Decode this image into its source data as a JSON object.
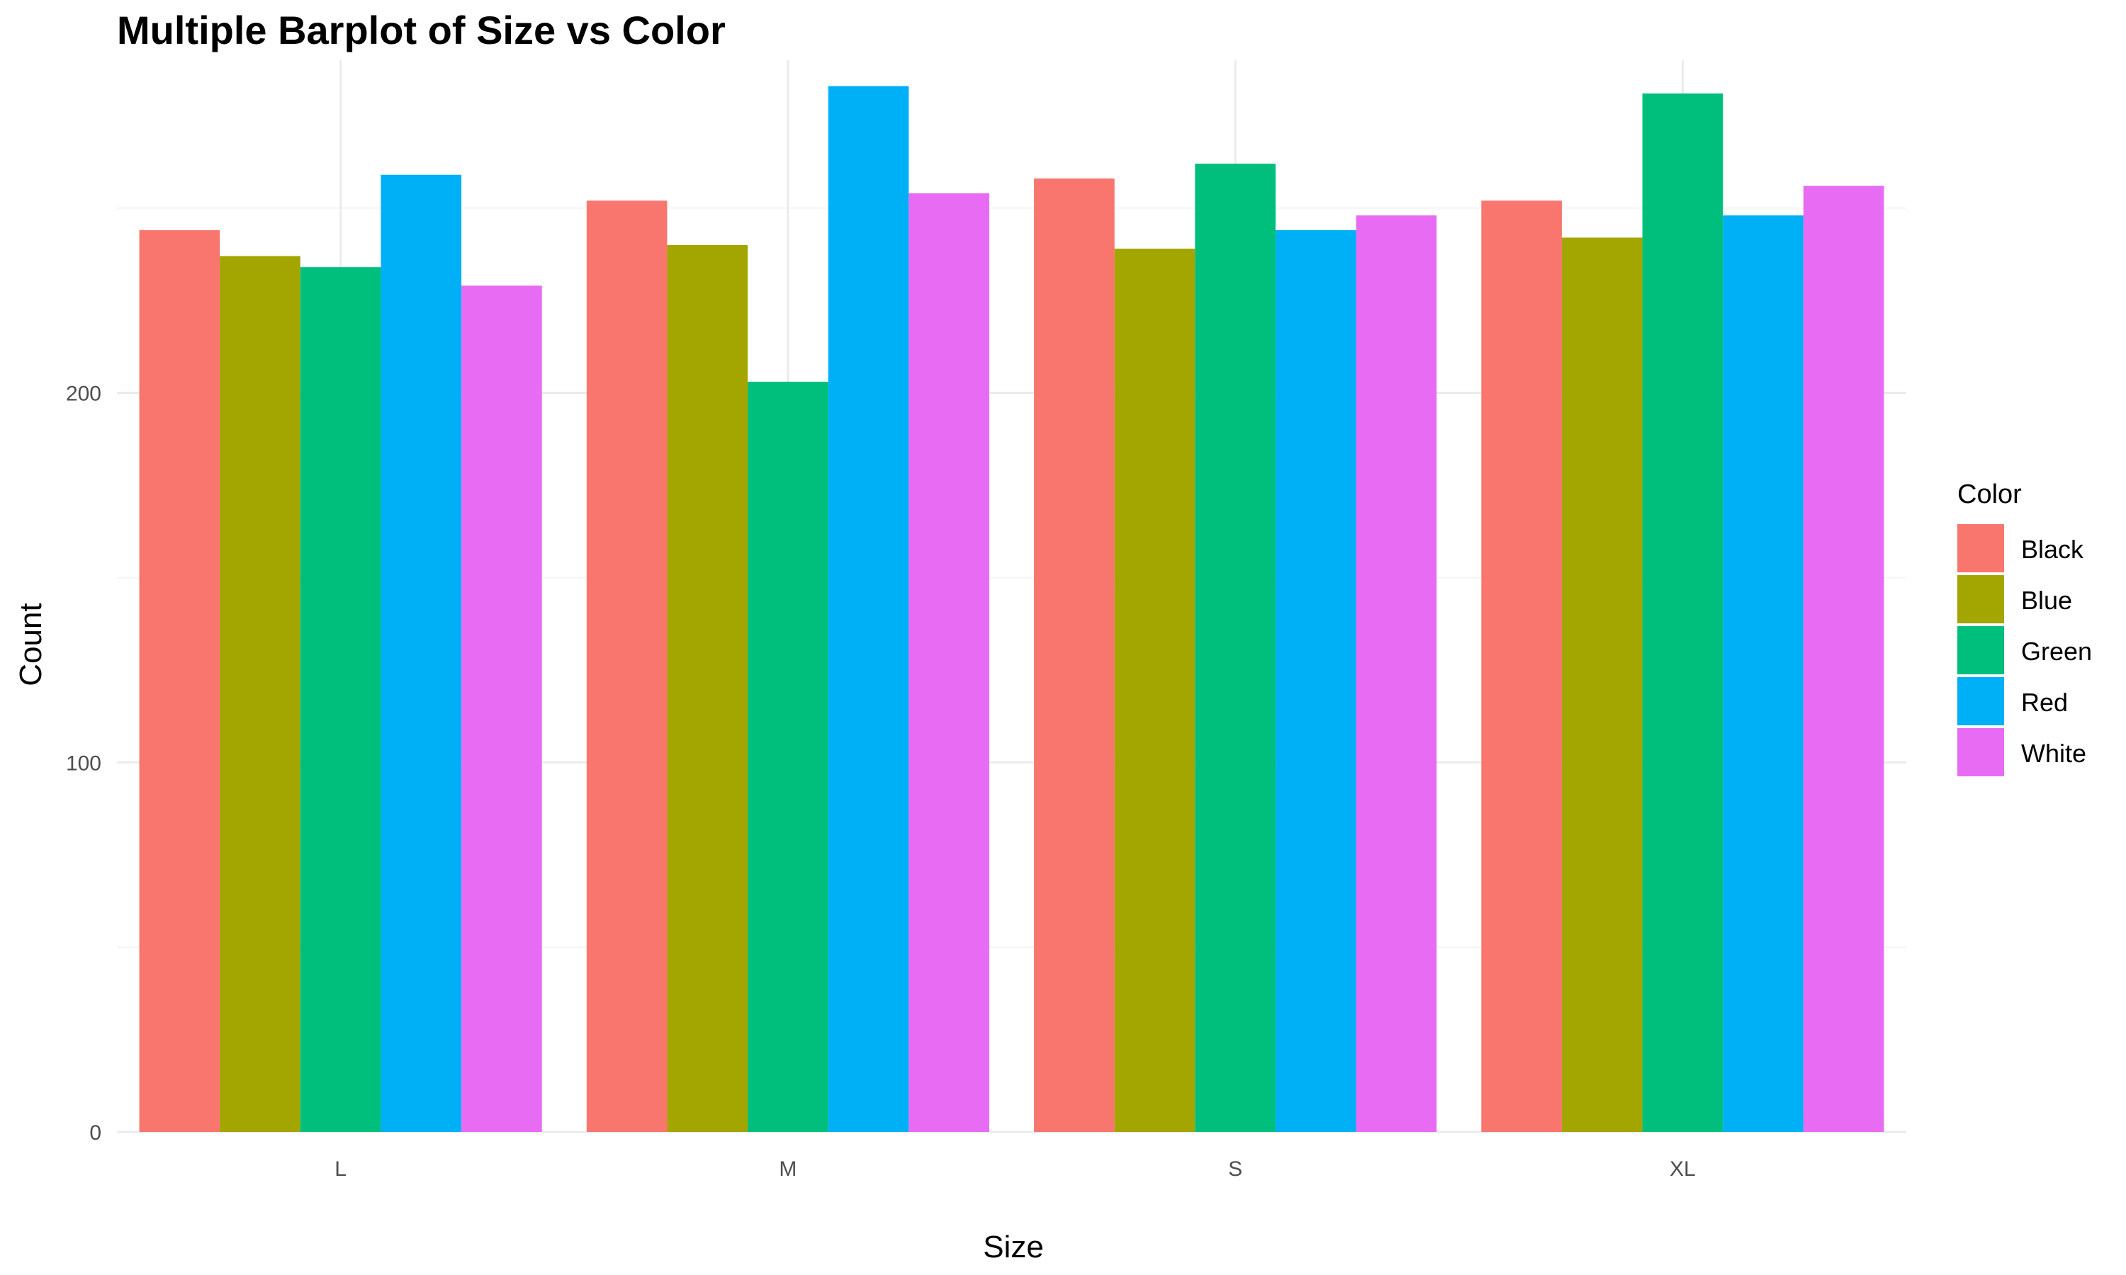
{
  "chart_data": {
    "type": "bar",
    "title": "Multiple Barplot of Size vs Color",
    "xlabel": "Size",
    "ylabel": "Count",
    "categories": [
      "L",
      "M",
      "S",
      "XL"
    ],
    "series": [
      {
        "name": "Black",
        "color": "#F8766D",
        "values": [
          244,
          252,
          258,
          252
        ]
      },
      {
        "name": "Blue",
        "color": "#A3A500",
        "values": [
          237,
          240,
          239,
          242
        ]
      },
      {
        "name": "Green",
        "color": "#00BF7D",
        "values": [
          234,
          203,
          262,
          281
        ]
      },
      {
        "name": "Red",
        "color": "#00B0F6",
        "values": [
          259,
          283,
          244,
          248
        ]
      },
      {
        "name": "White",
        "color": "#E76BF3",
        "values": [
          229,
          254,
          248,
          256
        ]
      }
    ],
    "ylim": [
      0,
      290
    ],
    "yticks": [
      0,
      100,
      200
    ],
    "grid": true,
    "legend": {
      "title": "Color",
      "position": "right"
    }
  }
}
